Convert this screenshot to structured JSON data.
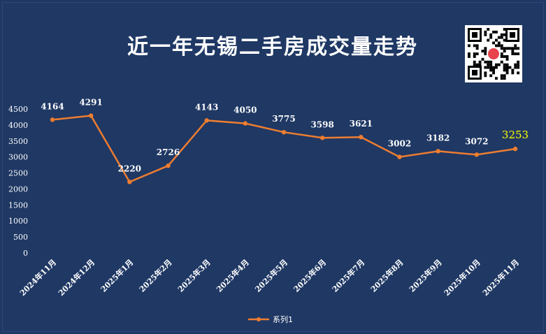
{
  "title": "近一年无锡二手房成交量走势",
  "qr_icon": "qr-code-icon",
  "chart_data": {
    "type": "line",
    "title": "近一年无锡二手房成交量走势",
    "xlabel": "",
    "ylabel": "",
    "categories": [
      "2024年11月",
      "2024年12月",
      "2025年1月",
      "2025年2月",
      "2025年3月",
      "2025年4月",
      "2025年5月",
      "2025年6月",
      "2025年7月",
      "2025年8月",
      "2025年9月",
      "2025年10月",
      "2025年11月"
    ],
    "series": [
      {
        "name": "系列1",
        "values": [
          4164,
          4291,
          2220,
          2726,
          4143,
          4050,
          3775,
          3598,
          3621,
          3002,
          3182,
          3072,
          3253
        ]
      }
    ],
    "data_labels": [
      "4164",
      "4291",
      "2220",
      "2726",
      "4143",
      "4050",
      "3775",
      "3598",
      "3621",
      "3002",
      "3182",
      "3072",
      "3253"
    ],
    "y_ticks": [
      "0",
      "500",
      "1000",
      "1500",
      "2000",
      "2500",
      "3000",
      "3500",
      "4000",
      "4500"
    ],
    "ylim": [
      0,
      4500
    ],
    "highlight_index": 12,
    "grid": false,
    "legend_position": "bottom",
    "colors": {
      "line": "#ed7d31",
      "background": "#1f3864",
      "text": "#ffffff",
      "highlight": "#ffff00"
    }
  }
}
